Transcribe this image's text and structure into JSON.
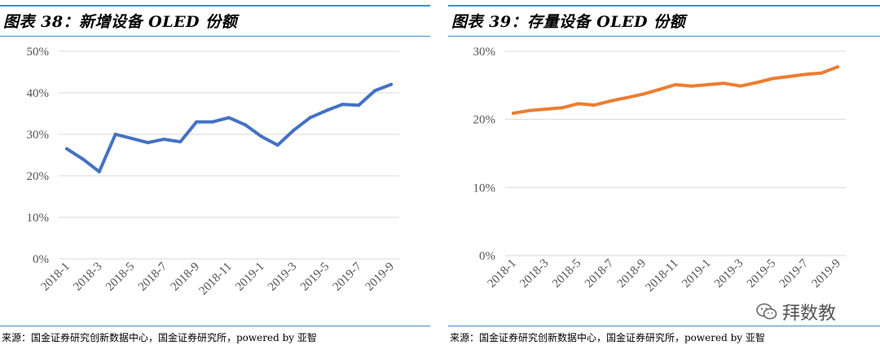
{
  "left": {
    "title": "图表 38：新增设备 OLED 份额",
    "source": "来源：国金证券研究创新数据中心，国金证券研究所，powered by 亚智"
  },
  "right": {
    "title": "图表 39：存量设备 OLED 份额",
    "source": "来源：国金证券研究创新数据中心，国金证券研究所，powered by 亚智"
  },
  "watermark": {
    "text": "拜数教",
    "icon": "wechat-icon"
  },
  "chart_data": [
    {
      "type": "line",
      "title": "",
      "color": "#4472c4",
      "x": [
        "2018-1",
        "2018-2",
        "2018-3",
        "2018-4",
        "2018-5",
        "2018-6",
        "2018-7",
        "2018-8",
        "2018-9",
        "2018-10",
        "2018-11",
        "2018-12",
        "2019-1",
        "2019-2",
        "2019-3",
        "2019-4",
        "2019-5",
        "2019-6",
        "2019-7",
        "2019-8",
        "2019-9"
      ],
      "x_tick_labels": [
        "2018-1",
        "2018-3",
        "2018-5",
        "2018-7",
        "2018-9",
        "2018-11",
        "2019-1",
        "2019-3",
        "2019-5",
        "2019-7",
        "2019-9"
      ],
      "values": [
        26.5,
        24.0,
        21.0,
        30.0,
        29.0,
        28.0,
        28.8,
        28.2,
        33.0,
        33.0,
        34.0,
        32.3,
        29.5,
        27.4,
        31.0,
        34.0,
        35.7,
        37.2,
        37.0,
        40.5,
        42.0
      ],
      "ylim": [
        0,
        50
      ],
      "y_ticks": [
        0,
        10,
        20,
        30,
        40,
        50
      ],
      "y_tick_labels": [
        "0%",
        "10%",
        "20%",
        "30%",
        "40%",
        "50%"
      ],
      "grid": true
    },
    {
      "type": "line",
      "title": "",
      "color": "#ed7d31",
      "x": [
        "2018-1",
        "2018-2",
        "2018-3",
        "2018-4",
        "2018-5",
        "2018-6",
        "2018-7",
        "2018-8",
        "2018-9",
        "2018-10",
        "2018-11",
        "2018-12",
        "2019-1",
        "2019-2",
        "2019-3",
        "2019-4",
        "2019-5",
        "2019-6",
        "2019-7",
        "2019-8",
        "2019-9"
      ],
      "x_tick_labels": [
        "2018-1",
        "2018-3",
        "2018-5",
        "2018-7",
        "2018-9",
        "2018-11",
        "2019-1",
        "2019-3",
        "2019-5",
        "2019-7",
        "2019-9"
      ],
      "values": [
        20.9,
        21.3,
        21.5,
        21.7,
        22.3,
        22.1,
        22.7,
        23.2,
        23.7,
        24.4,
        25.1,
        24.9,
        25.1,
        25.3,
        24.9,
        25.4,
        26.0,
        26.3,
        26.6,
        26.8,
        27.7
      ],
      "ylim": [
        0,
        30
      ],
      "y_ticks": [
        0,
        10,
        20,
        30
      ],
      "y_tick_labels": [
        "0%",
        "10%",
        "20%",
        "30%"
      ],
      "grid": true
    }
  ]
}
